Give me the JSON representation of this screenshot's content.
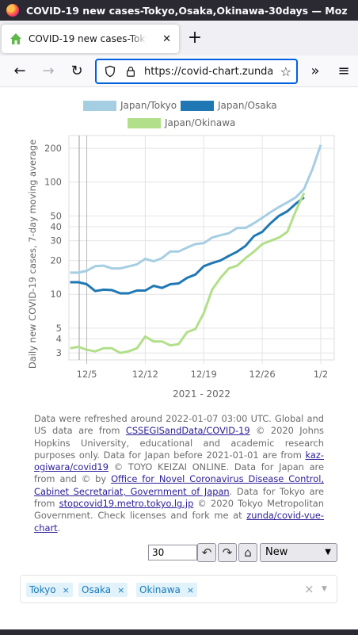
{
  "window": {
    "title": "COVID-19 new cases-Tokyo,Osaka,Okinawa-30days — Moz"
  },
  "tab": {
    "title": "COVID-19 new cases-Tokyo,Os",
    "close_glyph": "✕"
  },
  "toolbar": {
    "new_tab_glyph": "+",
    "back_glyph": "←",
    "forward_glyph": "→",
    "reload_glyph": "↻",
    "url": "https://covid-chart.zunda.ni",
    "overflow_glyph": "»",
    "menu_glyph": "≡"
  },
  "chart_data": {
    "type": "line",
    "xlabel": "2021 - 2022",
    "ylabel": "Daily new COVID-19 cases, 7-day moving average",
    "y_scale": "log",
    "y_ticks": [
      3,
      4,
      5,
      10,
      20,
      30,
      40,
      50,
      100,
      200
    ],
    "x_ticks": [
      "12/5",
      "12/12",
      "12/19",
      "12/26",
      "1/2"
    ],
    "x_start": "12/4",
    "legend_position": "top",
    "grid": true,
    "series": [
      {
        "name": "Japan/Tokyo",
        "color": "#a6cee3",
        "values": [
          15.6,
          15.6,
          16.2,
          17.8,
          18.0,
          17.0,
          17.0,
          17.7,
          18.5,
          20.7,
          19.7,
          21.0,
          24.1,
          24.1,
          26.1,
          28.0,
          28.6,
          32.0,
          33.6,
          35.0,
          39.0,
          39.0,
          43.0,
          48.0,
          54.0,
          60.0,
          66.0,
          73.0,
          87.0,
          130.0,
          215.0
        ]
      },
      {
        "name": "Japan/Osaka",
        "color": "#1f78b4",
        "values": [
          12.8,
          12.8,
          12.3,
          10.7,
          11.0,
          10.9,
          10.2,
          10.2,
          10.8,
          10.8,
          11.9,
          11.4,
          12.3,
          12.5,
          14.0,
          15.0,
          17.8,
          19.0,
          20.0,
          22.0,
          24.0,
          27.0,
          33.0,
          36.0,
          43.0,
          50.0,
          55.0,
          64.0,
          73.0
        ]
      },
      {
        "name": "Japan/Okinawa",
        "color": "#b2df8a",
        "values": [
          3.3,
          3.4,
          3.2,
          3.1,
          3.3,
          3.3,
          3.0,
          3.1,
          3.3,
          4.2,
          3.8,
          3.8,
          3.5,
          3.6,
          4.6,
          4.9,
          6.8,
          11.0,
          14.0,
          17.0,
          18.0,
          21.0,
          24.0,
          28.0,
          30.0,
          32.0,
          36.0,
          55.0,
          80.0
        ]
      }
    ]
  },
  "notice": {
    "t1": "Data were refreshed around 2022-01-07 03:00 UTC. Global and US data are from ",
    "l1": "CSSEGISandData/COVID-19",
    "t2": " © 2020 Johns Hopkins University, educational and academic research purposes only. Data for Japan before 2021-01-01 are from ",
    "l2": "kaz-ogiwara/covid19",
    "t3": " © TOYO KEIZAI ONLINE. Data for Japan are from and © by ",
    "l3": "Office for Novel Coronavirus Disease Control, Cabinet Secretariat, Government of Japan",
    "t4": ". Data for Tokyo are from ",
    "l4": "stopcovid19.metro.tokyo.lg.jp",
    "t5": " © 2020 Tokyo Metropolitan Government. Check licenses and fork me at ",
    "l5": "zunda/covid-vue-chart",
    "t6": "."
  },
  "controls": {
    "days_value": "30",
    "undo_glyph": "↶",
    "redo_glyph": "↷",
    "home_glyph": "⌂",
    "sort_selected": "New",
    "caret_glyph": "▼"
  },
  "regions": {
    "tags": [
      "Tokyo",
      "Osaka",
      "Okinawa"
    ],
    "remove_glyph": "×",
    "clear_glyph": "×",
    "caret_glyph": "▼"
  }
}
